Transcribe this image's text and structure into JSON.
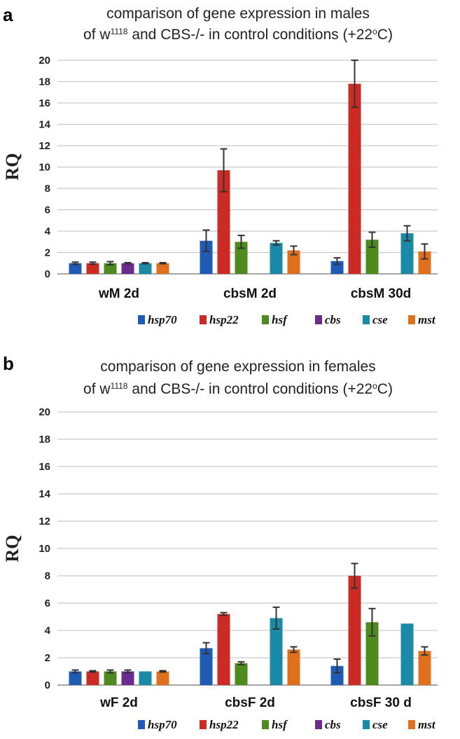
{
  "chart_data": [
    {
      "panel": "a",
      "type": "bar",
      "title_line1": "comparison of gene expression in males",
      "title_line2_pre": "of w",
      "title_line2_sup": "1118",
      "title_line2_mid": " and CBS-/- in control conditions (+22",
      "title_line2_deg": "o",
      "title_line2_post": "C)",
      "xlabel": "",
      "ylabel": "RQ",
      "ylim": [
        0,
        20
      ],
      "yticks": [
        "0",
        "2",
        "4",
        "6",
        "8",
        "10",
        "12",
        "14",
        "16",
        "18",
        "20"
      ],
      "categories": [
        "wM 2d",
        "cbsM 2d",
        "cbsM 30d"
      ],
      "series": [
        {
          "name": "hsp70",
          "values": [
            1.0,
            3.1,
            1.2
          ],
          "errors": [
            0.1,
            1.0,
            0.3
          ]
        },
        {
          "name": "hsp22",
          "values": [
            1.0,
            9.7,
            17.8
          ],
          "errors": [
            0.1,
            2.0,
            2.2
          ]
        },
        {
          "name": "hsf",
          "values": [
            1.0,
            3.0,
            3.2
          ],
          "errors": [
            0.15,
            0.6,
            0.7
          ]
        },
        {
          "name": "cbs",
          "values": [
            1.0,
            null,
            null
          ],
          "errors": [
            0.05,
            null,
            null
          ]
        },
        {
          "name": "cse",
          "values": [
            1.0,
            2.9,
            3.8
          ],
          "errors": [
            0.05,
            0.2,
            0.7
          ]
        },
        {
          "name": "mst",
          "values": [
            1.0,
            2.2,
            2.1
          ],
          "errors": [
            0.05,
            0.4,
            0.7
          ]
        }
      ],
      "legend_position": "bottom-right"
    },
    {
      "panel": "b",
      "type": "bar",
      "title_line1": "comparison of gene expression in females",
      "title_line2_pre": "of w",
      "title_line2_sup": "1118",
      "title_line2_mid": " and CBS-/- in control conditions (+22",
      "title_line2_deg": "o",
      "title_line2_post": "C)",
      "xlabel": "",
      "ylabel": "RQ",
      "ylim": [
        0,
        20
      ],
      "yticks": [
        "0",
        "2",
        "4",
        "6",
        "8",
        "10",
        "12",
        "14",
        "16",
        "18",
        "20"
      ],
      "categories": [
        "wF 2d",
        "cbsF 2d",
        "cbsF 30 d"
      ],
      "series": [
        {
          "name": "hsp70",
          "values": [
            1.0,
            2.7,
            1.4
          ],
          "errors": [
            0.1,
            0.4,
            0.5
          ]
        },
        {
          "name": "hsp22",
          "values": [
            1.0,
            5.2,
            8.0
          ],
          "errors": [
            0.05,
            0.1,
            0.9
          ]
        },
        {
          "name": "hsf",
          "values": [
            1.0,
            1.6,
            4.6
          ],
          "errors": [
            0.1,
            0.1,
            1.0
          ]
        },
        {
          "name": "cbs",
          "values": [
            1.0,
            null,
            null
          ],
          "errors": [
            0.1,
            null,
            null
          ]
        },
        {
          "name": "cse",
          "values": [
            1.0,
            4.9,
            4.5
          ],
          "errors": [
            0.0,
            0.8,
            0.0
          ]
        },
        {
          "name": "mst",
          "values": [
            1.0,
            2.6,
            2.5
          ],
          "errors": [
            0.05,
            0.2,
            0.3
          ]
        }
      ],
      "legend_position": "bottom-right"
    }
  ],
  "colors": {
    "hsp70": "#1f5bb5",
    "hsp22": "#cc2a24",
    "hsf": "#4e8a1e",
    "cbs": "#6a2d8f",
    "cse": "#1a8aa6",
    "mst": "#e0701c",
    "gridline": "#c9c9c9",
    "axis": "#888888",
    "errorbar": "#333333"
  }
}
